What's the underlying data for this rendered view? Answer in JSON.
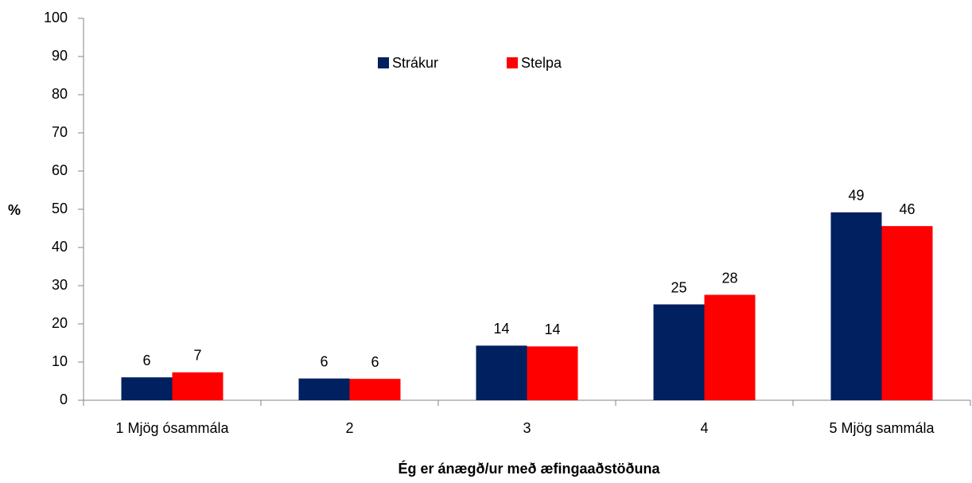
{
  "chart_data": {
    "type": "bar",
    "x_label": "Ég er ánægð/ur með æfingaaðstöðuna",
    "y_label": "%",
    "categories": [
      "1 Mjög ósammála",
      "2",
      "3",
      "4",
      "5 Mjög sammála"
    ],
    "series": [
      {
        "name": "Strákur",
        "color": "#002060",
        "values": [
          6.0,
          5.7,
          14.3,
          25.1,
          49.2
        ],
        "value_labels": [
          "6",
          "6",
          "14",
          "25",
          "49"
        ]
      },
      {
        "name": "Stelpa",
        "color": "#ff0000",
        "values": [
          7.3,
          5.6,
          14.1,
          27.6,
          45.6
        ],
        "value_labels": [
          "7",
          "6",
          "14",
          "28",
          "46"
        ]
      }
    ],
    "ylim": [
      0,
      100
    ],
    "yticks": [
      0,
      10,
      20,
      30,
      40,
      50,
      60,
      70,
      80,
      90,
      100
    ],
    "grid": false,
    "legend": "top"
  }
}
